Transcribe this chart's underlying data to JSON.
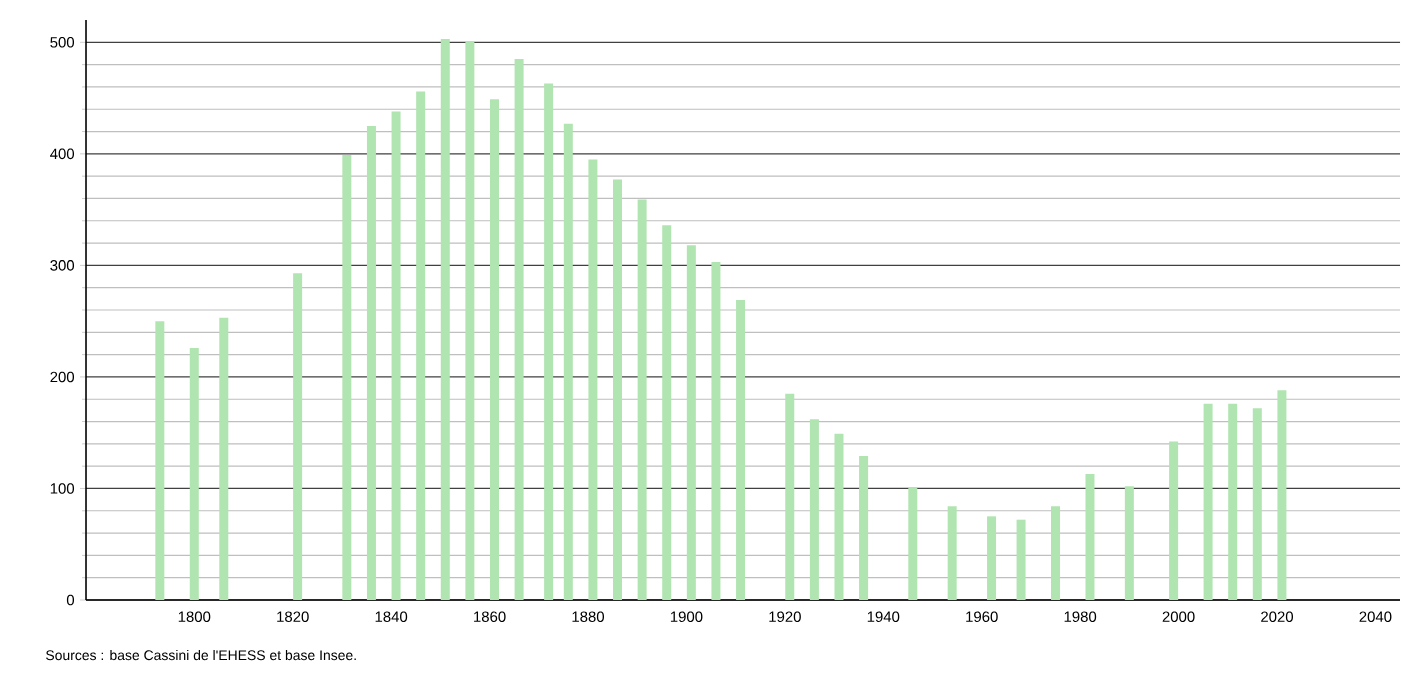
{
  "chart_data": {
    "type": "bar",
    "x": [
      1793,
      1800,
      1806,
      1821,
      1831,
      1836,
      1841,
      1846,
      1851,
      1856,
      1861,
      1866,
      1872,
      1876,
      1881,
      1886,
      1891,
      1896,
      1901,
      1906,
      1911,
      1921,
      1926,
      1931,
      1936,
      1946,
      1954,
      1962,
      1968,
      1975,
      1982,
      1990,
      1999,
      2006,
      2011,
      2016,
      2021
    ],
    "values": [
      250,
      226,
      253,
      293,
      399,
      425,
      438,
      456,
      503,
      501,
      449,
      485,
      463,
      427,
      395,
      377,
      359,
      336,
      318,
      303,
      269,
      185,
      162,
      149,
      129,
      101,
      84,
      75,
      72,
      84,
      113,
      102,
      142,
      176,
      176,
      172,
      188
    ],
    "color": "#b0e4b0",
    "xlim": [
      1778,
      2045
    ],
    "ylim": [
      0,
      520
    ],
    "xticks": [
      1800,
      1820,
      1840,
      1860,
      1880,
      1900,
      1920,
      1940,
      1960,
      1980,
      2000,
      2020,
      2040
    ],
    "yticks": [
      0,
      100,
      200,
      300,
      400,
      500
    ],
    "grid": "y",
    "annotations": [
      "Sources : base Cassini de l'EHESS et base Insee."
    ]
  }
}
